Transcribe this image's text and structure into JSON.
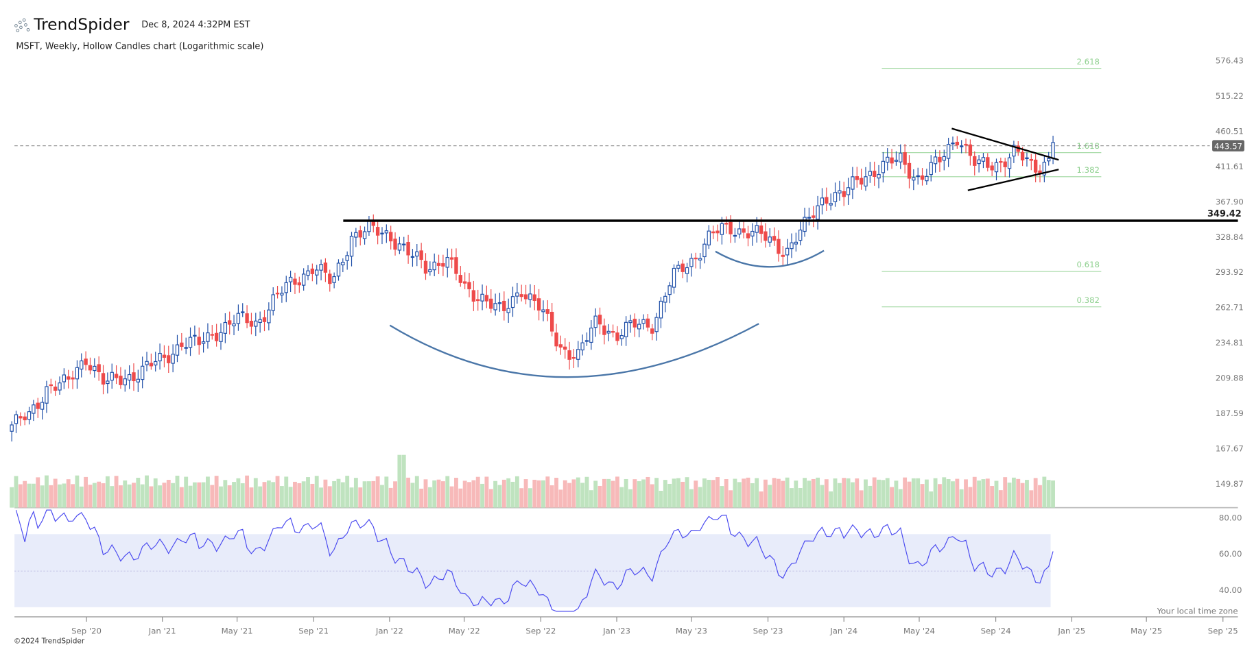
{
  "header": {
    "brand": "TrendSpider",
    "timestamp": "Dec 8, 2024 4:32PM EST",
    "subtitle": "MSFT, Weekly, Hollow Candles chart (Logarithmic scale)",
    "copyright": "©2024 TrendSpider",
    "timezone_note": "Your local time zone"
  },
  "colors": {
    "up": "#1f4fa8",
    "down": "#ee4a4a",
    "vol_up": "#bfe3bf",
    "vol_down": "#f7b9b9",
    "rsi": "#4a4af0",
    "rsi_band": "#e8ecfa",
    "arc": "#4a76a8",
    "fib": "#9fd79f"
  },
  "chart_data": {
    "type": "candlestick",
    "title": "MSFT, Weekly, Hollow Candles chart (Logarithmic scale)",
    "price_ticks": [
      "576.43",
      "515.22",
      "460.51",
      "411.61",
      "367.90",
      "328.84",
      "293.92",
      "262.71",
      "234.81",
      "209.88",
      "187.59",
      "167.67",
      "149.87"
    ],
    "last_price": "443.57",
    "resistance": {
      "value": 349.42,
      "label": "349.42"
    },
    "fib_levels": [
      {
        "label": "2.618",
        "value": 565
      },
      {
        "label": "1.618",
        "value": 431
      },
      {
        "label": "1.382",
        "value": 400
      },
      {
        "label": "0.618",
        "value": 300
      },
      {
        "label": "0.382",
        "value": 268
      }
    ],
    "x_ticks": [
      "Sep '20",
      "Jan '21",
      "May '21",
      "Sep '21",
      "Jan '22",
      "May '22",
      "Sep '22",
      "Jan '23",
      "May '23",
      "Sep '23",
      "Jan '24",
      "May '24",
      "Sep '24",
      "Jan '25",
      "May '25",
      "Sep '25"
    ],
    "rsi_ticks": [
      "80.00",
      "60.00",
      "40.00"
    ],
    "monthly_closes": [
      [
        "2020-05",
        180
      ],
      [
        "2020-06",
        185
      ],
      [
        "2020-07",
        205
      ],
      [
        "2020-08",
        205
      ],
      [
        "2020-09",
        225
      ],
      [
        "2020-10",
        205
      ],
      [
        "2020-11",
        210
      ],
      [
        "2020-12",
        215
      ],
      [
        "2021-01",
        222
      ],
      [
        "2021-02",
        235
      ],
      [
        "2021-03",
        233
      ],
      [
        "2021-04",
        245
      ],
      [
        "2021-05",
        252
      ],
      [
        "2021-06",
        250
      ],
      [
        "2021-07",
        270
      ],
      [
        "2021-08",
        285
      ],
      [
        "2021-09",
        300
      ],
      [
        "2021-10",
        282
      ],
      [
        "2021-11",
        330
      ],
      [
        "2021-12",
        335
      ],
      [
        "2022-01",
        332
      ],
      [
        "2022-02",
        310
      ],
      [
        "2022-03",
        298
      ],
      [
        "2022-04",
        308
      ],
      [
        "2022-05",
        278
      ],
      [
        "2022-06",
        272
      ],
      [
        "2022-07",
        256
      ],
      [
        "2022-08",
        280
      ],
      [
        "2022-09",
        260
      ],
      [
        "2022-10",
        232
      ],
      [
        "2022-11",
        225
      ],
      [
        "2022-12",
        252
      ],
      [
        "2023-01",
        240
      ],
      [
        "2023-02",
        248
      ],
      [
        "2023-03",
        250
      ],
      [
        "2023-04",
        288
      ],
      [
        "2023-05",
        305
      ],
      [
        "2023-06",
        330
      ],
      [
        "2023-07",
        338
      ],
      [
        "2023-08",
        335
      ],
      [
        "2023-09",
        325
      ],
      [
        "2023-10",
        315
      ],
      [
        "2023-11",
        340
      ],
      [
        "2023-12",
        375
      ],
      [
        "2024-01",
        375
      ],
      [
        "2024-02",
        400
      ],
      [
        "2024-03",
        410
      ],
      [
        "2024-04",
        420
      ],
      [
        "2024-05",
        395
      ],
      [
        "2024-06",
        415
      ],
      [
        "2024-07",
        455
      ],
      [
        "2024-08",
        410
      ],
      [
        "2024-09",
        415
      ],
      [
        "2024-10",
        430
      ],
      [
        "2024-11",
        408
      ],
      [
        "2024-12",
        425
      ]
    ],
    "final_close": 443.57
  }
}
